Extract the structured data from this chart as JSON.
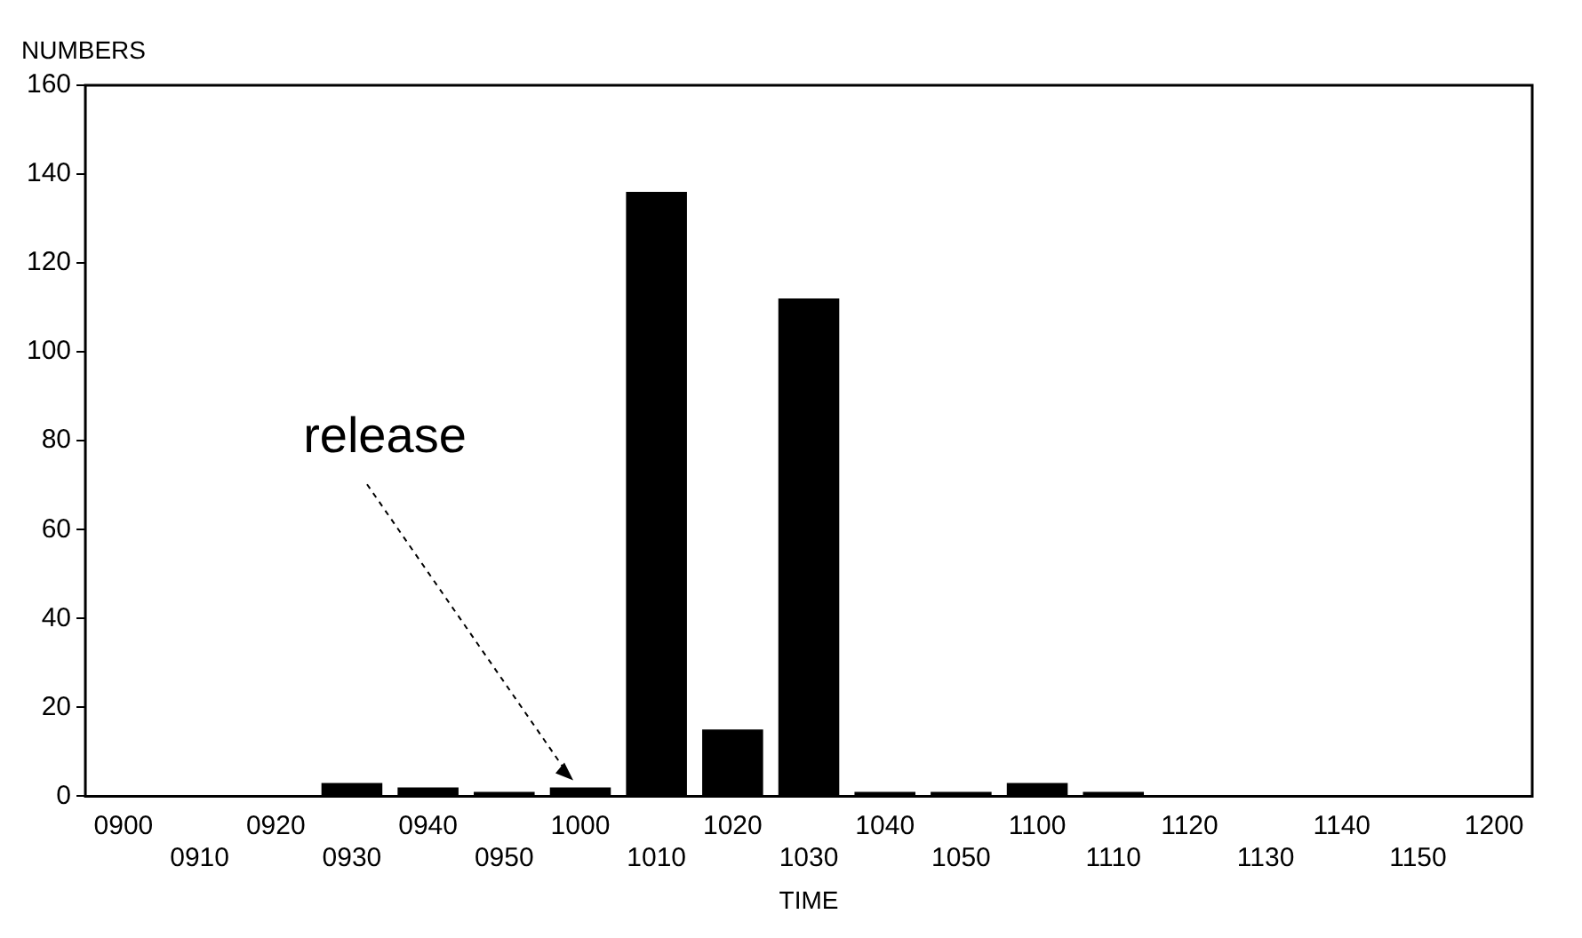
{
  "chart_data": {
    "type": "bar",
    "ylabel": "NUMBERS",
    "xlabel": "TIME",
    "categories": [
      "0900",
      "0910",
      "0920",
      "0930",
      "0940",
      "0950",
      "1000",
      "1010",
      "1020",
      "1030",
      "1040",
      "1050",
      "1100",
      "1110",
      "1120",
      "1130",
      "1140",
      "1150",
      "1200"
    ],
    "values": [
      0,
      0,
      0,
      3,
      2,
      1,
      2,
      136,
      15,
      112,
      1,
      1,
      3,
      1,
      0,
      0,
      0,
      0,
      0
    ],
    "color": "#000000",
    "ylim": [
      0,
      160
    ],
    "yticks": [
      0,
      20,
      40,
      60,
      80,
      100,
      120,
      140,
      160
    ],
    "grid": false,
    "legend": false,
    "annotations": [
      {
        "text": "release",
        "x": "1000",
        "y": 2
      }
    ]
  }
}
